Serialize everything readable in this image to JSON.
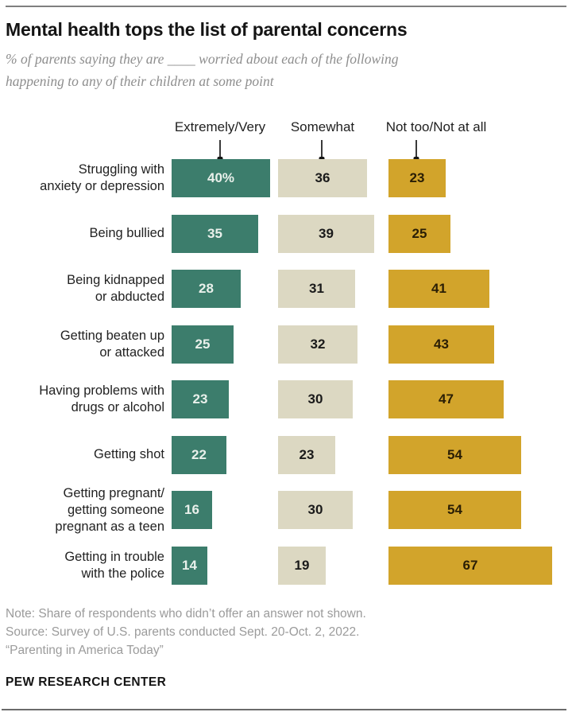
{
  "header": {
    "title": "Mental health tops the list of parental concerns",
    "subtitle_line1": "% of parents saying they are ____ worried about each of the following",
    "subtitle_line2": "happening to any of their children at some point"
  },
  "chart_data": {
    "type": "bar",
    "orientation": "horizontal",
    "unit": "%",
    "legend": [
      "Extremely/Very",
      "Somewhat",
      "Not too/Not at all"
    ],
    "legend_position": "top",
    "grid": false,
    "xlim": [
      0,
      70
    ],
    "categories": [
      "Struggling with anxiety or depression",
      "Being bullied",
      "Being kidnapped or abducted",
      "Getting beaten up or attacked",
      "Having problems with drugs or alcohol",
      "Getting shot",
      "Getting pregnant/getting someone pregnant as a teen",
      "Getting in trouble with the police"
    ],
    "category_lines": [
      [
        "Struggling with",
        "anxiety or depression"
      ],
      [
        "Being bullied"
      ],
      [
        "Being kidnapped",
        "or abducted"
      ],
      [
        "Getting beaten up",
        "or attacked"
      ],
      [
        "Having problems with",
        "drugs or alcohol"
      ],
      [
        "Getting shot"
      ],
      [
        "Getting pregnant/",
        "getting someone",
        "pregnant as a teen"
      ],
      [
        "Getting in trouble",
        "with the police"
      ]
    ],
    "series": [
      {
        "name": "Extremely/Very",
        "color": "#3C7D6C",
        "text_color": "#E9F0EB",
        "values": [
          40,
          35,
          28,
          25,
          23,
          22,
          16,
          14
        ],
        "labels": [
          "40%",
          "35",
          "28",
          "25",
          "23",
          "22",
          "16",
          "14"
        ]
      },
      {
        "name": "Somewhat",
        "color": "#DCD8C2",
        "text_color": "#1A1A1A",
        "values": [
          36,
          39,
          31,
          32,
          30,
          23,
          30,
          19
        ],
        "labels": [
          "36",
          "39",
          "31",
          "32",
          "30",
          "23",
          "30",
          "19"
        ]
      },
      {
        "name": "Not too/Not at all",
        "color": "#D2A42B",
        "text_color": "#2A1E05",
        "values": [
          23,
          25,
          41,
          43,
          47,
          54,
          54,
          67
        ],
        "labels": [
          "23",
          "25",
          "41",
          "43",
          "47",
          "54",
          "54",
          "67"
        ]
      }
    ]
  },
  "footer": {
    "note": "Note: Share of respondents who didn’t offer an answer not shown.",
    "source": "Source: Survey of U.S. parents conducted Sept. 20-Oct. 2, 2022.",
    "quote": "“Parenting in America Today”",
    "wordmark": "PEW RESEARCH CENTER"
  }
}
